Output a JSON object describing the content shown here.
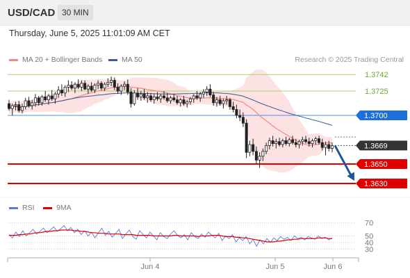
{
  "header": {
    "symbol": "USD/CAD",
    "timeframe": "30 MIN"
  },
  "datetime": "Thursday, June 5, 2025 11:01:09 AM CET",
  "legend": {
    "ma20": {
      "label": "MA 20 + Bollinger Bands",
      "color": "#f28b82"
    },
    "ma50": {
      "label": "MA 50",
      "color": "#3b5998"
    },
    "credit": "Research © 2025 Trading Central"
  },
  "rsi_legend": {
    "rsi": {
      "label": "RSI",
      "color": "#5b7bd5"
    },
    "ma": {
      "label": "9MA",
      "color": "#e00000"
    }
  },
  "chart_data": [
    {
      "type": "candlestick",
      "title": "USD/CAD 30 MIN",
      "x_ticks": [
        "Jun 4",
        "Jun 5",
        "Jun 6"
      ],
      "ylim": [
        1.362,
        1.375
      ],
      "levels": [
        {
          "value": 1.3742,
          "label": "1.3742",
          "style": "resistance",
          "color": "#6aaa2d"
        },
        {
          "value": 1.3725,
          "label": "1.3725",
          "style": "resistance",
          "color": "#6aaa2d"
        },
        {
          "value": 1.37,
          "label": "1.3700",
          "style": "pivot",
          "color": "#1e6fd9"
        },
        {
          "value": 1.3669,
          "label": "1.3669",
          "style": "last-price",
          "color": "#333333"
        },
        {
          "value": 1.365,
          "label": "1.3650",
          "style": "support",
          "color": "#e00000"
        },
        {
          "value": 1.363,
          "label": "1.3630",
          "style": "support",
          "color": "#e00000"
        }
      ],
      "forecast": {
        "direction": "down",
        "target": 1.363,
        "color": "#1f5596"
      },
      "candles": [
        [
          1.3712,
          1.3716,
          1.3705,
          1.3707
        ],
        [
          1.3707,
          1.3712,
          1.37,
          1.371
        ],
        [
          1.371,
          1.3714,
          1.3705,
          1.3711
        ],
        [
          1.3711,
          1.3715,
          1.3703,
          1.3705
        ],
        [
          1.3705,
          1.3712,
          1.3702,
          1.3709
        ],
        [
          1.3709,
          1.3718,
          1.3706,
          1.3715
        ],
        [
          1.3715,
          1.3719,
          1.3708,
          1.371
        ],
        [
          1.371,
          1.3716,
          1.3706,
          1.3713
        ],
        [
          1.3713,
          1.3722,
          1.3709,
          1.3718
        ],
        [
          1.3718,
          1.372,
          1.371,
          1.3713
        ],
        [
          1.3713,
          1.3721,
          1.371,
          1.3719
        ],
        [
          1.3719,
          1.3725,
          1.3714,
          1.3716
        ],
        [
          1.3716,
          1.3722,
          1.3711,
          1.372
        ],
        [
          1.372,
          1.3726,
          1.3715,
          1.3717
        ],
        [
          1.3717,
          1.3724,
          1.3712,
          1.3722
        ],
        [
          1.3722,
          1.373,
          1.3718,
          1.3726
        ],
        [
          1.3726,
          1.3732,
          1.372,
          1.3723
        ],
        [
          1.3723,
          1.3731,
          1.3719,
          1.3729
        ],
        [
          1.3729,
          1.3736,
          1.3724,
          1.3731
        ],
        [
          1.3731,
          1.3735,
          1.3726,
          1.3728
        ],
        [
          1.3728,
          1.3734,
          1.3723,
          1.3732
        ],
        [
          1.3732,
          1.3737,
          1.3727,
          1.3729
        ],
        [
          1.3729,
          1.3736,
          1.3725,
          1.3733
        ],
        [
          1.3733,
          1.3736,
          1.3726,
          1.3727
        ],
        [
          1.3727,
          1.3732,
          1.3722,
          1.373
        ],
        [
          1.373,
          1.3734,
          1.3724,
          1.3726
        ],
        [
          1.3726,
          1.3733,
          1.3723,
          1.3731
        ],
        [
          1.3731,
          1.3736,
          1.3727,
          1.3733
        ],
        [
          1.3733,
          1.3735,
          1.3726,
          1.3728
        ],
        [
          1.3728,
          1.3734,
          1.3725,
          1.3732
        ],
        [
          1.3732,
          1.3738,
          1.3729,
          1.3734
        ],
        [
          1.3734,
          1.374,
          1.373,
          1.3736
        ],
        [
          1.3736,
          1.3739,
          1.3726,
          1.3729
        ],
        [
          1.3729,
          1.3733,
          1.3722,
          1.3725
        ],
        [
          1.3725,
          1.3732,
          1.3721,
          1.373
        ],
        [
          1.373,
          1.3735,
          1.3726,
          1.3732
        ],
        [
          1.3732,
          1.3737,
          1.3721,
          1.3724
        ],
        [
          1.3724,
          1.3728,
          1.3708,
          1.3712
        ],
        [
          1.3712,
          1.3726,
          1.371,
          1.3723
        ],
        [
          1.3723,
          1.3728,
          1.3716,
          1.3719
        ],
        [
          1.3719,
          1.3725,
          1.3715,
          1.3722
        ],
        [
          1.3722,
          1.3727,
          1.3716,
          1.3718
        ],
        [
          1.3718,
          1.3724,
          1.3713,
          1.372
        ],
        [
          1.372,
          1.3723,
          1.3714,
          1.3716
        ],
        [
          1.3716,
          1.3722,
          1.3712,
          1.3719
        ],
        [
          1.3719,
          1.3724,
          1.3715,
          1.3717
        ],
        [
          1.3717,
          1.3722,
          1.3713,
          1.372
        ],
        [
          1.372,
          1.3725,
          1.3716,
          1.3718
        ],
        [
          1.3718,
          1.3723,
          1.3713,
          1.3715
        ],
        [
          1.3715,
          1.372,
          1.3712,
          1.3718
        ],
        [
          1.3718,
          1.3722,
          1.3714,
          1.3716
        ],
        [
          1.3716,
          1.372,
          1.3711,
          1.3713
        ],
        [
          1.3713,
          1.3718,
          1.3709,
          1.3716
        ],
        [
          1.3716,
          1.372,
          1.371,
          1.3712
        ],
        [
          1.3712,
          1.3716,
          1.3708,
          1.3714
        ],
        [
          1.3714,
          1.3719,
          1.3711,
          1.3717
        ],
        [
          1.3717,
          1.3722,
          1.3713,
          1.372
        ],
        [
          1.372,
          1.3725,
          1.3716,
          1.3718
        ],
        [
          1.3718,
          1.3724,
          1.3714,
          1.3722
        ],
        [
          1.3722,
          1.3727,
          1.3718,
          1.3724
        ],
        [
          1.3724,
          1.373,
          1.372,
          1.3727
        ],
        [
          1.3727,
          1.3732,
          1.3719,
          1.3721
        ],
        [
          1.3721,
          1.3724,
          1.371,
          1.3713
        ],
        [
          1.3713,
          1.3719,
          1.3709,
          1.3716
        ],
        [
          1.3716,
          1.372,
          1.371,
          1.3712
        ],
        [
          1.3712,
          1.3717,
          1.3707,
          1.3715
        ],
        [
          1.3715,
          1.372,
          1.3711,
          1.3716
        ],
        [
          1.3716,
          1.3718,
          1.3706,
          1.3709
        ],
        [
          1.3709,
          1.3714,
          1.3703,
          1.3706
        ],
        [
          1.3706,
          1.3711,
          1.3697,
          1.37
        ],
        [
          1.37,
          1.3706,
          1.3694,
          1.3698
        ],
        [
          1.3698,
          1.3703,
          1.3688,
          1.3692
        ],
        [
          1.3692,
          1.3696,
          1.3656,
          1.3662
        ],
        [
          1.3662,
          1.3674,
          1.3658,
          1.367
        ],
        [
          1.367,
          1.3676,
          1.3659,
          1.3663
        ],
        [
          1.3663,
          1.3668,
          1.365,
          1.3654
        ],
        [
          1.3654,
          1.3662,
          1.3646,
          1.3658
        ],
        [
          1.3658,
          1.3666,
          1.3653,
          1.3663
        ],
        [
          1.3663,
          1.3672,
          1.366,
          1.3669
        ],
        [
          1.3669,
          1.3677,
          1.3665,
          1.3674
        ],
        [
          1.3674,
          1.3679,
          1.3668,
          1.3671
        ],
        [
          1.3671,
          1.3676,
          1.3666,
          1.3673
        ],
        [
          1.3673,
          1.3677,
          1.3668,
          1.367
        ],
        [
          1.367,
          1.3676,
          1.3667,
          1.3674
        ],
        [
          1.3674,
          1.3678,
          1.3669,
          1.3671
        ],
        [
          1.3671,
          1.3677,
          1.3668,
          1.3675
        ],
        [
          1.3675,
          1.3679,
          1.367,
          1.3672
        ],
        [
          1.3672,
          1.3676,
          1.3667,
          1.367
        ],
        [
          1.367,
          1.3675,
          1.3666,
          1.3673
        ],
        [
          1.3673,
          1.3678,
          1.3669,
          1.3675
        ],
        [
          1.3675,
          1.3679,
          1.3671,
          1.3673
        ],
        [
          1.3673,
          1.3677,
          1.3668,
          1.3671
        ],
        [
          1.3671,
          1.3676,
          1.3667,
          1.3674
        ],
        [
          1.3674,
          1.3678,
          1.367,
          1.3676
        ],
        [
          1.3676,
          1.3679,
          1.367,
          1.3672
        ],
        [
          1.3672,
          1.3676,
          1.3664,
          1.3667
        ],
        [
          1.3667,
          1.3673,
          1.3659,
          1.367
        ],
        [
          1.367,
          1.3674,
          1.3663,
          1.3666
        ],
        [
          1.3666,
          1.3672,
          1.3662,
          1.3669
        ]
      ]
    },
    {
      "type": "line",
      "title": "RSI",
      "ylim": [
        25,
        75
      ],
      "y_ticks": [
        70,
        50,
        40,
        30
      ],
      "series": [
        {
          "name": "RSI",
          "values": [
            52,
            47,
            56,
            49,
            58,
            50,
            55,
            60,
            53,
            57,
            62,
            55,
            59,
            64,
            57,
            61,
            66,
            58,
            63,
            55,
            60,
            52,
            58,
            50,
            56,
            47,
            55,
            62,
            51,
            57,
            48,
            54,
            60,
            46,
            53,
            59,
            49,
            45,
            58,
            52,
            47,
            56,
            50,
            44,
            55,
            49,
            46,
            53,
            58,
            51,
            47,
            52,
            44,
            55,
            49,
            46,
            53,
            48,
            56,
            51,
            47,
            54,
            43,
            50,
            46,
            52,
            41,
            47,
            43,
            49,
            38,
            45,
            34,
            44,
            38,
            46,
            40,
            47,
            43,
            49,
            45,
            48,
            43,
            50,
            46,
            48,
            44,
            49,
            47,
            45,
            50,
            46,
            48,
            44,
            47
          ]
        },
        {
          "name": "9MA",
          "values": [
            51,
            51,
            51,
            52,
            52,
            53,
            53,
            54,
            55,
            55,
            56,
            57,
            57,
            58,
            58,
            59,
            59,
            59,
            59,
            58,
            58,
            57,
            57,
            56,
            55,
            55,
            54,
            54,
            54,
            53,
            53,
            53,
            53,
            52,
            52,
            52,
            52,
            51,
            51,
            51,
            51,
            51,
            50,
            50,
            50,
            50,
            50,
            50,
            51,
            51,
            50,
            50,
            50,
            50,
            50,
            49,
            50,
            50,
            50,
            51,
            51,
            51,
            50,
            49,
            49,
            49,
            48,
            48,
            47,
            47,
            46,
            45,
            44,
            43,
            42,
            41,
            41,
            41,
            42,
            42,
            43,
            44,
            44,
            45,
            45,
            46,
            46,
            46,
            46,
            46,
            47,
            47,
            47,
            46,
            46
          ]
        }
      ]
    }
  ]
}
